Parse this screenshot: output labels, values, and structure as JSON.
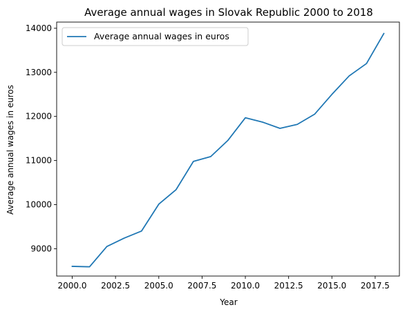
{
  "chart_data": {
    "type": "line",
    "title": "Average annual wages in Slovak Republic 2000 to 2018",
    "xlabel": "Year",
    "ylabel": "Average annual wages in euros",
    "xlim": [
      1999.1,
      2018.9
    ],
    "ylim": [
      8380,
      14140
    ],
    "xticks": [
      2000.0,
      2002.5,
      2005.0,
      2007.5,
      2010.0,
      2012.5,
      2015.0,
      2017.5
    ],
    "xtick_labels": [
      "2000.0",
      "2002.5",
      "2005.0",
      "2007.5",
      "2010.0",
      "2012.5",
      "2015.0",
      "2017.5"
    ],
    "yticks": [
      9000,
      10000,
      11000,
      12000,
      13000,
      14000
    ],
    "ytick_labels": [
      "9000",
      "10000",
      "11000",
      "12000",
      "13000",
      "14000"
    ],
    "grid": false,
    "legend_position": "top-left",
    "series": [
      {
        "name": "Average annual wages in euros",
        "color": "#1f77b4",
        "x": [
          2000,
          2001,
          2002,
          2003,
          2004,
          2005,
          2006,
          2007,
          2008,
          2009,
          2010,
          2011,
          2012,
          2013,
          2014,
          2015,
          2016,
          2017,
          2018
        ],
        "values": [
          8600,
          8590,
          9050,
          9240,
          9400,
          10010,
          10340,
          10980,
          11090,
          11460,
          11970,
          11870,
          11730,
          11820,
          12050,
          12500,
          12920,
          13200,
          13880
        ]
      }
    ]
  }
}
